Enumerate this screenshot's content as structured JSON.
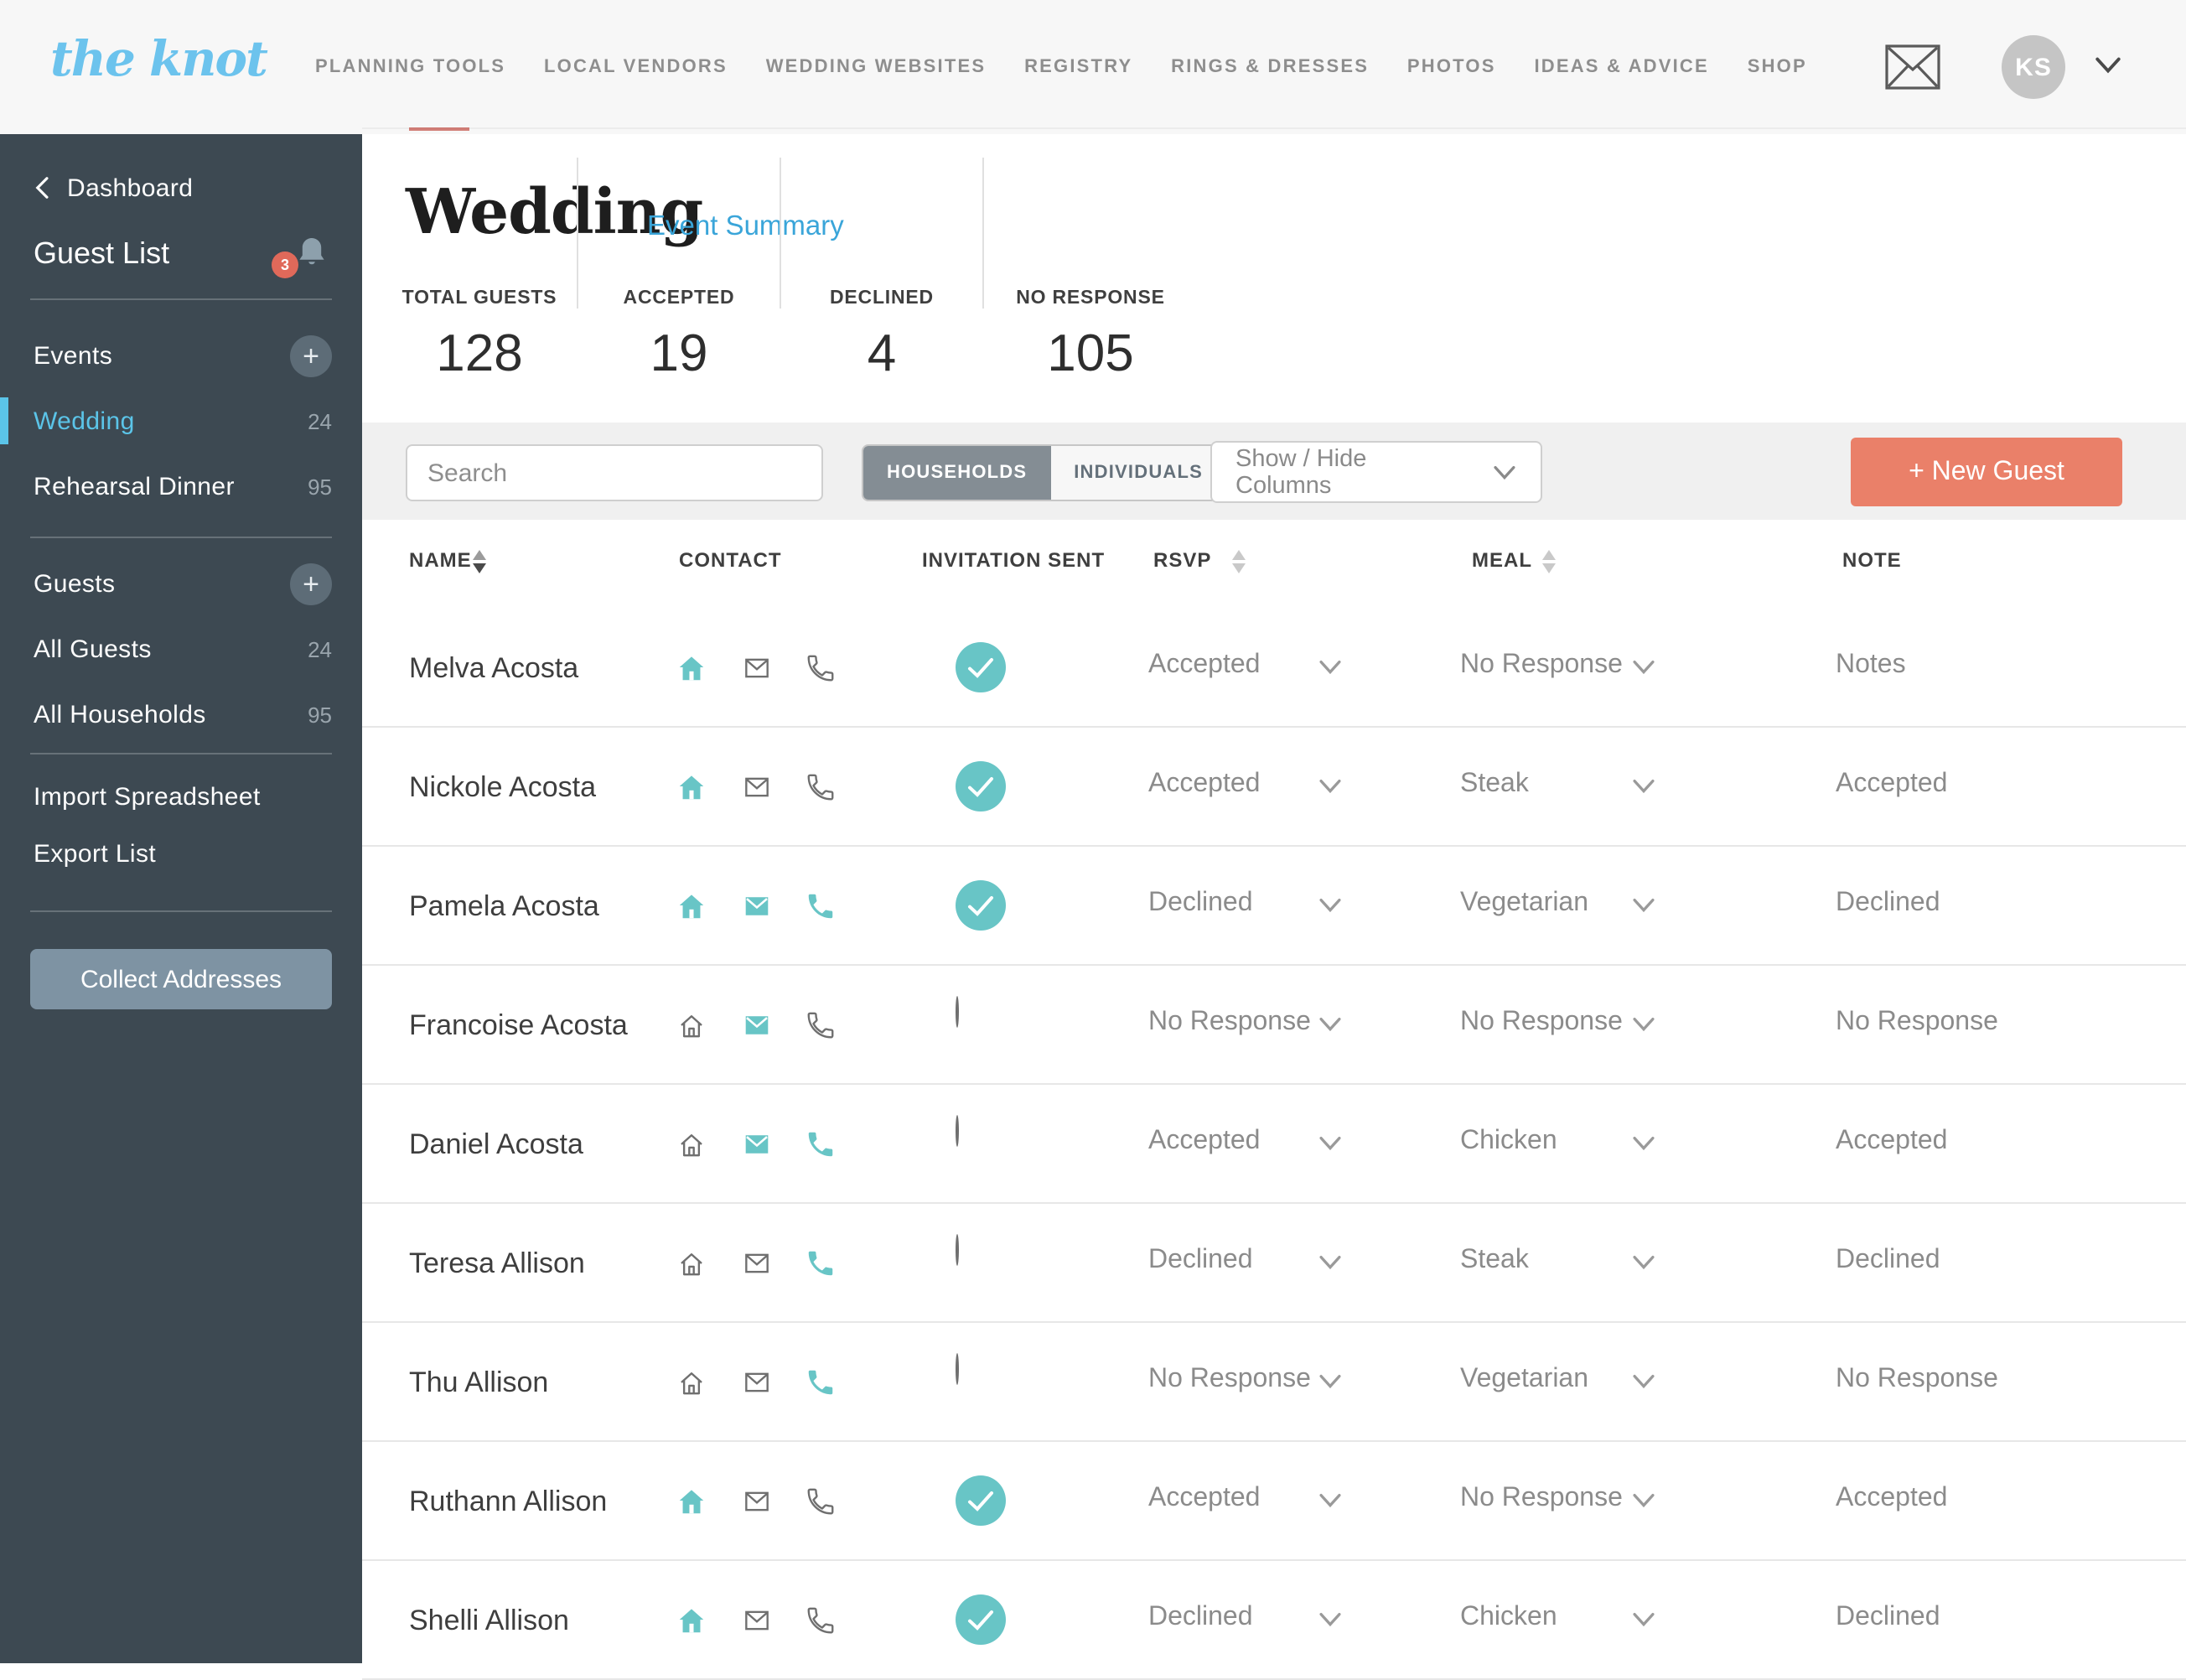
{
  "nav": {
    "logo": "the knot",
    "items": [
      "PLANNING TOOLS",
      "LOCAL VENDORS",
      "WEDDING WEBSITES",
      "REGISTRY",
      "RINGS & DRESSES",
      "PHOTOS",
      "IDEAS & ADVICE",
      "SHOP"
    ],
    "avatar_initials": "KS"
  },
  "sidebar": {
    "back_label": "Dashboard",
    "title": "Guest List",
    "notification_count": "3",
    "events_label": "Events",
    "event_items": [
      {
        "label": "Wedding",
        "count": "24",
        "active": true
      },
      {
        "label": "Rehearsal Dinner",
        "count": "95",
        "active": false
      }
    ],
    "guests_label": "Guests",
    "guest_items": [
      {
        "label": "All Guests",
        "count": "24"
      },
      {
        "label": "All Households",
        "count": "95"
      }
    ],
    "links": [
      "Import Spreadsheet",
      "Export List"
    ],
    "collect_button": "Collect Addresses"
  },
  "header": {
    "title": "Wedding",
    "summary_link": "Event Summary",
    "stats": [
      {
        "label": "TOTAL GUESTS",
        "value": "128"
      },
      {
        "label": "ACCEPTED",
        "value": "19"
      },
      {
        "label": "DECLINED",
        "value": "4"
      },
      {
        "label": "NO RESPONSE",
        "value": "105"
      }
    ]
  },
  "toolbar": {
    "search_placeholder": "Search",
    "toggle_options": [
      "HOUSEHOLDS",
      "INDIVIDUALS"
    ],
    "toggle_selected": "HOUSEHOLDS",
    "columns_dropdown_label": "Show / Hide Columns",
    "new_guest_label": "+ New Guest"
  },
  "table": {
    "columns": [
      "NAME",
      "CONTACT",
      "INVITATION SENT",
      "RSVP",
      "MEAL",
      "NOTE"
    ],
    "rows": [
      {
        "name": "Melva Acosta",
        "home": true,
        "email": false,
        "phone": false,
        "invitation_sent": true,
        "rsvp": "Accepted",
        "meal": "No Response",
        "note": "Notes"
      },
      {
        "name": "Nickole Acosta",
        "home": true,
        "email": false,
        "phone": false,
        "invitation_sent": true,
        "rsvp": "Accepted",
        "meal": "Steak",
        "note": "Accepted"
      },
      {
        "name": "Pamela Acosta",
        "home": true,
        "email": true,
        "phone": true,
        "invitation_sent": true,
        "rsvp": "Declined",
        "meal": "Vegetarian",
        "note": "Declined"
      },
      {
        "name": "Francoise Acosta",
        "home": false,
        "email": true,
        "phone": false,
        "invitation_sent": false,
        "rsvp": "No Response",
        "meal": "No Response",
        "note": "No Response"
      },
      {
        "name": "Daniel Acosta",
        "home": false,
        "email": true,
        "phone": true,
        "invitation_sent": false,
        "rsvp": "Accepted",
        "meal": "Chicken",
        "note": "Accepted"
      },
      {
        "name": "Teresa Allison",
        "home": false,
        "email": false,
        "phone": true,
        "invitation_sent": false,
        "rsvp": "Declined",
        "meal": "Steak",
        "note": "Declined"
      },
      {
        "name": "Thu Allison",
        "home": false,
        "email": false,
        "phone": true,
        "invitation_sent": false,
        "rsvp": "No Response",
        "meal": "Vegetarian",
        "note": "No Response"
      },
      {
        "name": "Ruthann Allison",
        "home": true,
        "email": false,
        "phone": false,
        "invitation_sent": true,
        "rsvp": "Accepted",
        "meal": "No Response",
        "note": "Accepted"
      },
      {
        "name": "Shelli Allison",
        "home": true,
        "email": false,
        "phone": false,
        "invitation_sent": true,
        "rsvp": "Declined",
        "meal": "Chicken",
        "note": "Declined"
      }
    ]
  },
  "colors": {
    "teal": "#68c5c6",
    "coral": "#ea8069",
    "sidebar_bg": "#3d4952",
    "link_blue": "#3aa5d9",
    "logo_blue": "#6cc3ed",
    "active_blue": "#5bc4e8",
    "badge_red": "#e0695a",
    "toggle_selected_bg": "#848d94",
    "collect_button_bg": "#7e93a3",
    "avatar_bg": "#c5c5c5"
  }
}
